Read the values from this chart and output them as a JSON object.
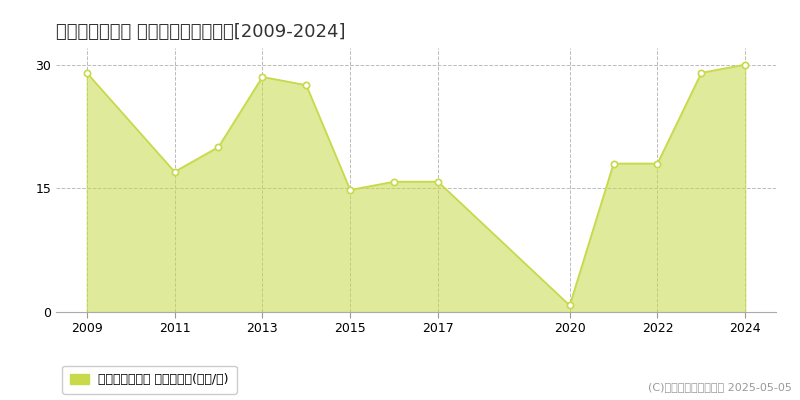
{
  "title": "新潟市東区東明 マンション価格推移[2009-2024]",
  "years": [
    2009,
    2011,
    2012,
    2013,
    2014,
    2015,
    2016,
    2017,
    2020,
    2021,
    2022,
    2023,
    2024
  ],
  "values": [
    29.0,
    17.0,
    20.0,
    28.5,
    27.5,
    14.8,
    15.8,
    15.8,
    0.8,
    18.0,
    18.0,
    29.0,
    30.0
  ],
  "line_color": "#c8d94a",
  "fill_color": "#c8d94a",
  "fill_alpha": 0.55,
  "marker_color": "#ffffff",
  "marker_edge_color": "#c8d94a",
  "bg_color": "#ffffff",
  "plot_bg_color": "#ffffff",
  "grid_color": "#bbbbbb",
  "ylim": [
    0,
    32
  ],
  "yticks": [
    0,
    15,
    30
  ],
  "xlim": [
    2008.3,
    2024.7
  ],
  "xticks": [
    2009,
    2011,
    2013,
    2015,
    2017,
    2020,
    2022,
    2024
  ],
  "legend_label": "マンション価格 平均嵪単価(万円/嵪)",
  "copyright": "(C)土地価格ドットコム 2025-05-05",
  "title_fontsize": 13,
  "axis_fontsize": 9,
  "legend_fontsize": 9,
  "copyright_fontsize": 8
}
